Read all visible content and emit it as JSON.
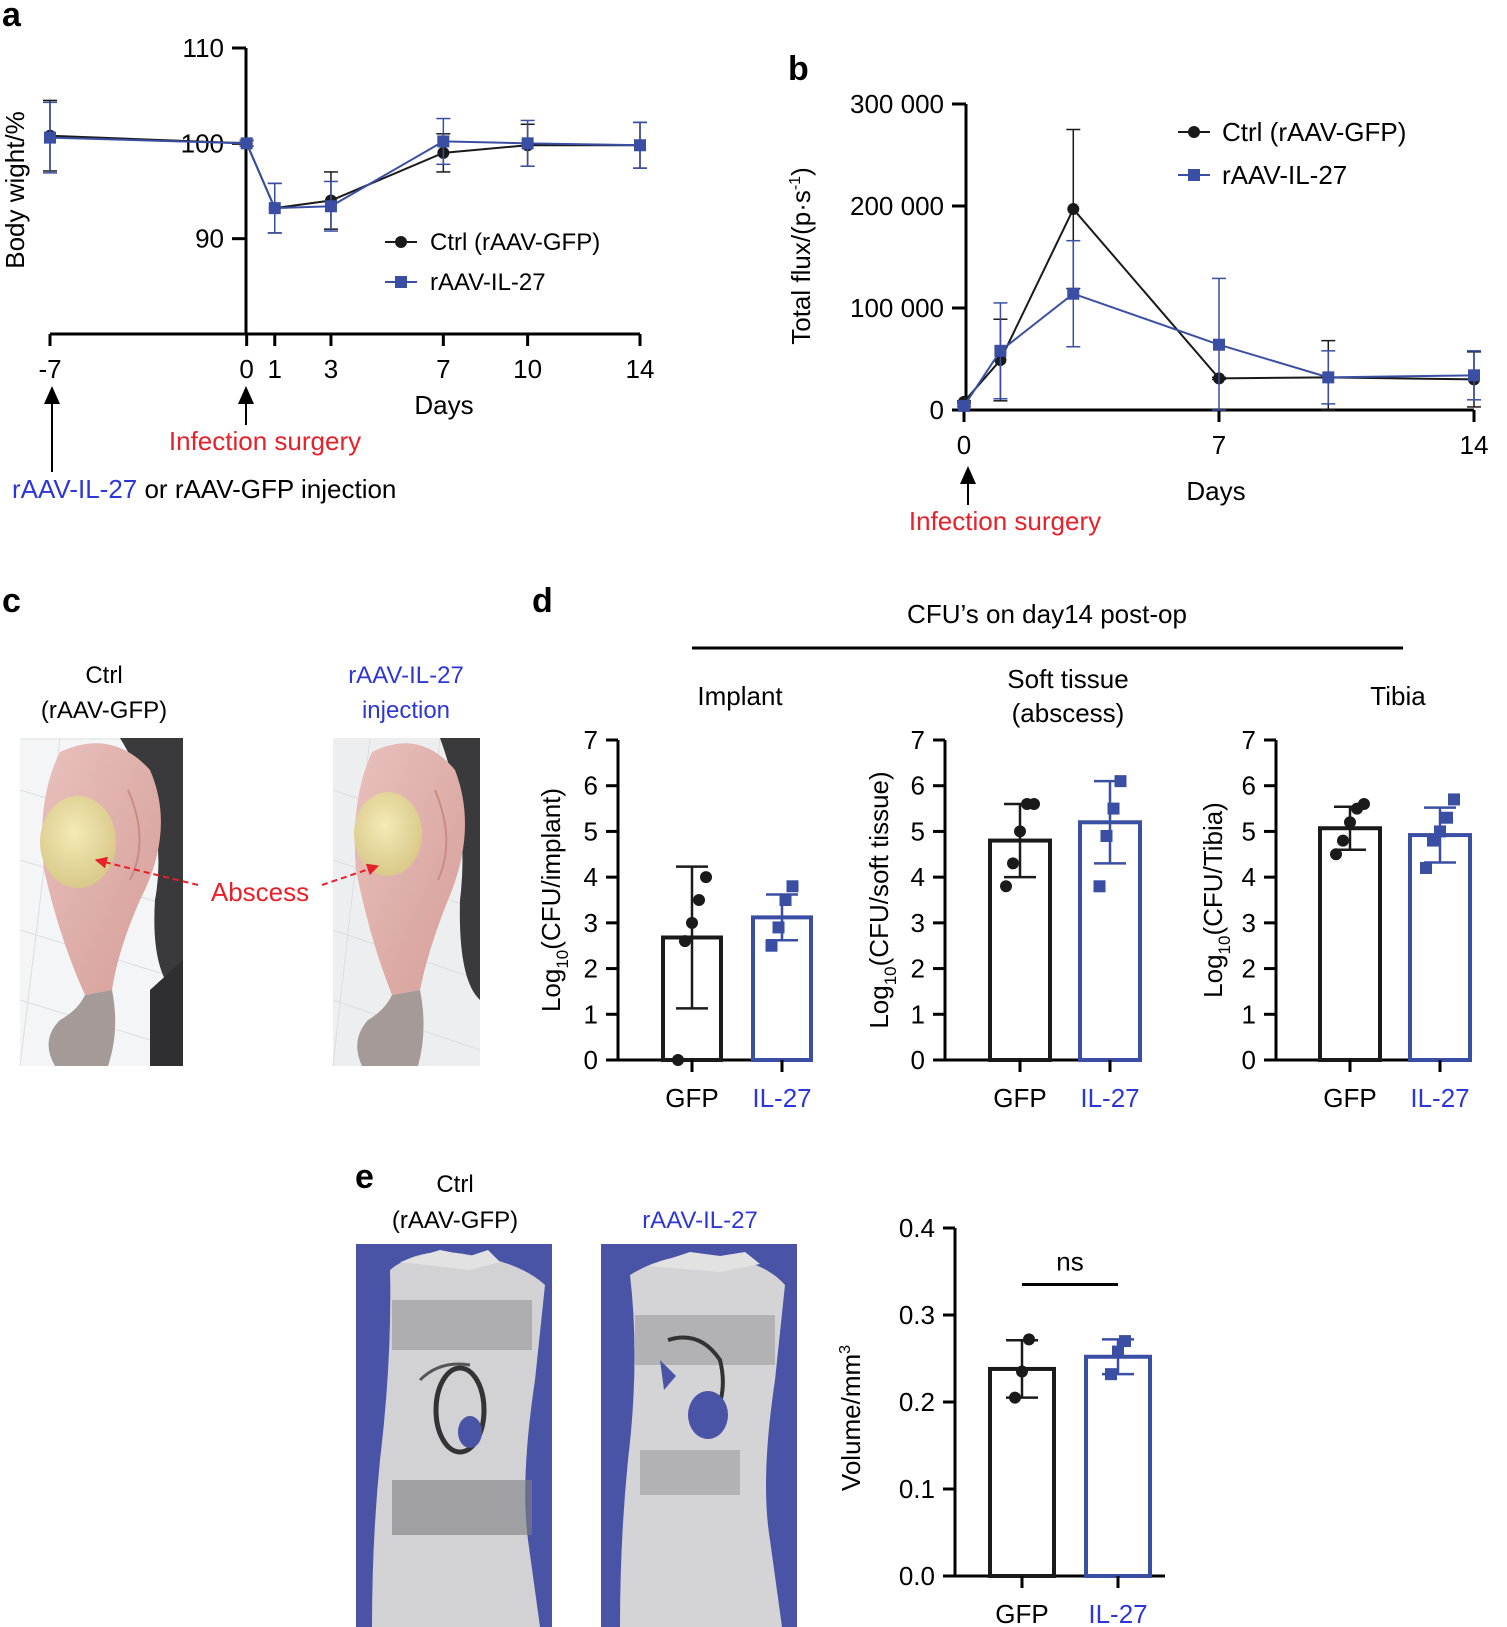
{
  "panels": {
    "a": {
      "label": "a",
      "xlabel": "Days",
      "ylabel": "Body wight/%",
      "legend": [
        "Ctrl (rAAV-GFP)",
        "rAAV-IL-27"
      ],
      "annotations": {
        "infection": "Infection surgery",
        "injection_blue": "rAAV-IL-27",
        "injection_rest": " or rAAV-GFP injection"
      }
    },
    "b": {
      "label": "b",
      "xlabel": "Days",
      "ylabel": "Total flux/(p·s",
      "ylabel_sup": "-1",
      "ylabel_end": ")",
      "legend": [
        "Ctrl (rAAV-GFP)",
        "rAAV-IL-27"
      ],
      "annotations": {
        "infection": "Infection surgery"
      }
    },
    "c": {
      "label": "c",
      "ctrl_line1": "Ctrl",
      "ctrl_line2": "(rAAV-GFP)",
      "il27_line1": "rAAV-IL-27",
      "il27_line2": "injection",
      "abscess": "Abscess"
    },
    "d": {
      "label": "d",
      "header": "CFU’s on day14 post-op",
      "subplots": [
        {
          "title": [
            "Implant"
          ],
          "ylabel_pre": "Log",
          "ylabel_sub": "10",
          "ylabel_post": "(CFU/implant)"
        },
        {
          "title": [
            "Soft tissue",
            "(abscess)"
          ],
          "ylabel_pre": "Log",
          "ylabel_sub": "10",
          "ylabel_post": "(CFU/soft tissue)"
        },
        {
          "title": [
            "Tibia"
          ],
          "ylabel_pre": "Log",
          "ylabel_sub": "10",
          "ylabel_post": "(CFU/Tibia)"
        }
      ]
    },
    "e": {
      "label": "e",
      "ctrl_line1": "Ctrl",
      "ctrl_line2": "(rAAV-GFP)",
      "il27_line1": "rAAV-IL-27",
      "ylabel": "Volume/mm",
      "ylabel_sup": "3",
      "sig": "ns"
    }
  },
  "colors": {
    "ctrl": "#1a1a1a",
    "il27": "#3a4fa3",
    "red": "#e8202a",
    "blue_text": "#2d37d6",
    "implant_bg": "#4a54a6"
  },
  "chart_data": [
    {
      "id": "a",
      "type": "line",
      "x": [
        -7,
        0,
        1,
        3,
        7,
        10,
        14
      ],
      "xticks": [
        -7,
        0,
        1,
        3,
        7,
        10,
        14
      ],
      "ylim": [
        80,
        110
      ],
      "yticks": [
        90,
        100,
        110
      ],
      "xlabel": "Days",
      "ylabel": "Body wight/%",
      "series": [
        {
          "name": "Ctrl (rAAV-GFP)",
          "values": [
            100.8,
            100,
            93.2,
            94.0,
            99.0,
            99.8,
            99.8
          ],
          "err": [
            3.7,
            0.3,
            2.6,
            3.0,
            2.0,
            2.2,
            2.4
          ],
          "marker": "circle"
        },
        {
          "name": "rAAV-IL-27",
          "values": [
            100.6,
            100,
            93.2,
            93.4,
            100.2,
            100.0,
            99.8
          ],
          "err": [
            3.7,
            0.3,
            2.6,
            2.6,
            2.4,
            2.4,
            2.4
          ],
          "marker": "square"
        }
      ],
      "legend": "right"
    },
    {
      "id": "b",
      "type": "line",
      "x": [
        0,
        1,
        3,
        7,
        10,
        14
      ],
      "xticks": [
        0,
        7,
        14
      ],
      "ylim": [
        0,
        300000
      ],
      "yticks": [
        0,
        100000,
        200000,
        300000
      ],
      "ytick_labels": [
        "0",
        "100 000",
        "200 000",
        "300 000"
      ],
      "xlabel": "Days",
      "ylabel": "Total flux/(p·s-1)",
      "series": [
        {
          "name": "Ctrl (rAAV-GFP)",
          "values": [
            8000,
            49000,
            197000,
            31000,
            32000,
            30000
          ],
          "err": [
            1000,
            40000,
            78000,
            1000,
            36000,
            27000
          ],
          "marker": "circle"
        },
        {
          "name": "rAAV-IL-27",
          "values": [
            4000,
            58000,
            114000,
            64000,
            32000,
            34000
          ],
          "err": [
            1000,
            47000,
            52000,
            65000,
            26000,
            24000
          ],
          "marker": "square"
        }
      ],
      "legend": "top-right"
    },
    {
      "id": "d1",
      "type": "bar",
      "title": "Implant",
      "categories": [
        "GFP",
        "IL-27"
      ],
      "values": [
        2.68,
        3.12
      ],
      "err": [
        1.55,
        0.5
      ],
      "points": [
        [
          0,
          2.6,
          3,
          3.5,
          4
        ],
        [
          2.5,
          2.9,
          3.5,
          3.8
        ]
      ],
      "ylim": [
        0,
        7
      ],
      "yticks": [
        0,
        1,
        2,
        3,
        4,
        5,
        6,
        7
      ],
      "ylabel": "Log10(CFU/implant)"
    },
    {
      "id": "d2",
      "type": "bar",
      "title": "Soft tissue (abscess)",
      "categories": [
        "GFP",
        "IL-27"
      ],
      "values": [
        4.8,
        5.2
      ],
      "err": [
        0.8,
        0.9
      ],
      "points": [
        [
          3.8,
          4.3,
          5.0,
          5.6,
          5.6
        ],
        [
          3.8,
          4.9,
          5.5,
          6.1
        ]
      ],
      "ylim": [
        0,
        7
      ],
      "yticks": [
        0,
        1,
        2,
        3,
        4,
        5,
        6,
        7
      ],
      "ylabel": "Log10(CFU/soft tissue)"
    },
    {
      "id": "d3",
      "type": "bar",
      "title": "Tibia",
      "categories": [
        "GFP",
        "IL-27"
      ],
      "values": [
        5.07,
        4.92
      ],
      "err": [
        0.47,
        0.6
      ],
      "points": [
        [
          4.5,
          4.8,
          5.2,
          5.5,
          5.6
        ],
        [
          4.2,
          4.8,
          5.0,
          5.3,
          5.7
        ]
      ],
      "ylim": [
        0,
        7
      ],
      "yticks": [
        0,
        1,
        2,
        3,
        4,
        5,
        6,
        7
      ],
      "ylabel": "Log10(CFU/Tibia)"
    },
    {
      "id": "e",
      "type": "bar",
      "categories": [
        "GFP",
        "IL-27"
      ],
      "values": [
        0.238,
        0.252
      ],
      "err": [
        0.033,
        0.02
      ],
      "points": [
        [
          0.205,
          0.235,
          0.272
        ],
        [
          0.232,
          0.258,
          0.27
        ]
      ],
      "ylim": [
        0,
        0.4
      ],
      "yticks": [
        0.0,
        0.1,
        0.2,
        0.3,
        0.4
      ],
      "ytick_labels": [
        "0.0",
        "0.1",
        "0.2",
        "0.3",
        "0.4"
      ],
      "ylabel": "Volume/mm3",
      "annotation": "ns"
    }
  ]
}
